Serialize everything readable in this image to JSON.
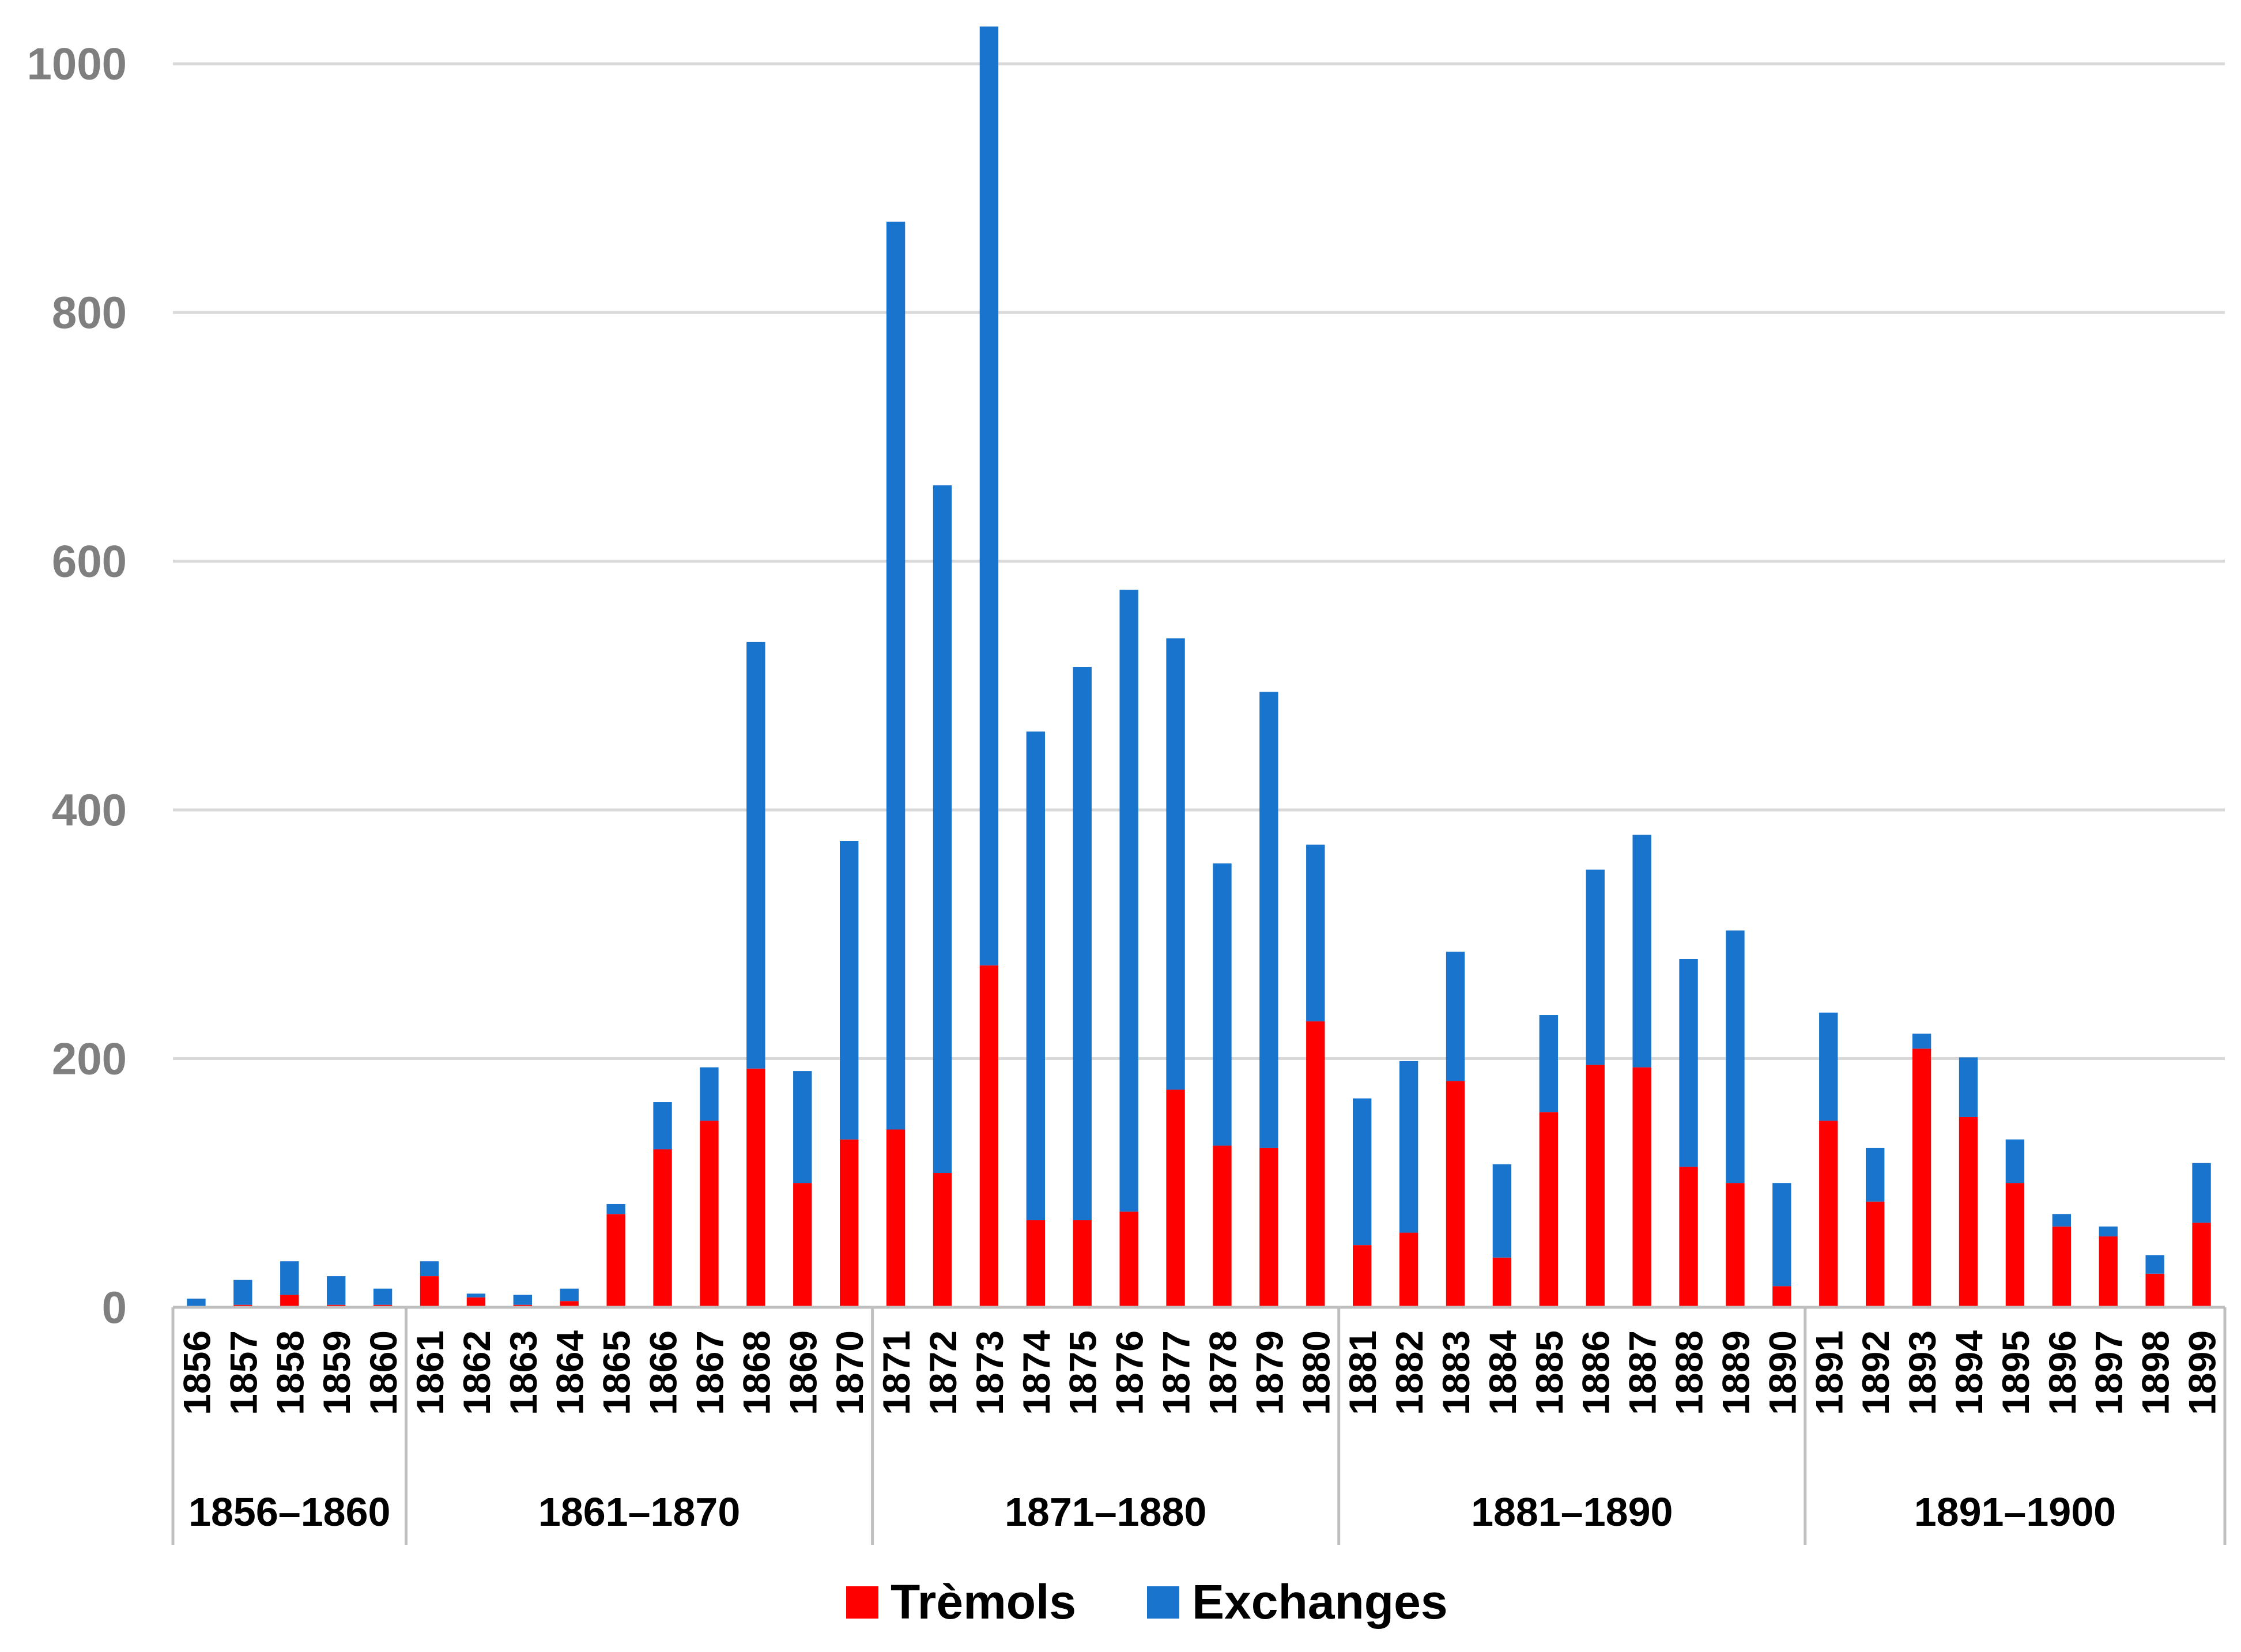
{
  "chart_data": {
    "type": "bar",
    "stacked": true,
    "title": "",
    "xlabel": "",
    "ylabel": "",
    "ylim": [
      0,
      1030
    ],
    "yticks": [
      0,
      200,
      400,
      600,
      800,
      1000
    ],
    "gridlines": true,
    "legend_position": "bottom",
    "categories": [
      "1856",
      "1857",
      "1858",
      "1859",
      "1860",
      "1861",
      "1862",
      "1863",
      "1864",
      "1865",
      "1866",
      "1867",
      "1868",
      "1869",
      "1870",
      "1871",
      "1872",
      "1873",
      "1874",
      "1875",
      "1876",
      "1877",
      "1878",
      "1879",
      "1880",
      "1881",
      "1882",
      "1883",
      "1884",
      "1885",
      "1886",
      "1887",
      "1888",
      "1889",
      "1890",
      "1891",
      "1892",
      "1893",
      "1894",
      "1895",
      "1896",
      "1897",
      "1898",
      "1899"
    ],
    "groups": [
      {
        "label": "1856–1860",
        "count": 5
      },
      {
        "label": "1861–1870",
        "count": 10
      },
      {
        "label": "1871–1880",
        "count": 10
      },
      {
        "label": "1881–1890",
        "count": 10
      },
      {
        "label": "1891–1900",
        "count": 9
      }
    ],
    "series": [
      {
        "name": "Trèmols",
        "color": "#ff0000",
        "values": [
          0,
          2,
          10,
          2,
          2,
          25,
          8,
          2,
          5,
          75,
          127,
          150,
          192,
          100,
          135,
          143,
          108,
          275,
          70,
          70,
          77,
          175,
          130,
          128,
          230,
          50,
          60,
          182,
          40,
          157,
          195,
          193,
          113,
          100,
          17,
          150,
          85,
          208,
          153,
          100,
          65,
          57,
          27,
          68
        ]
      },
      {
        "name": "Exchanges",
        "color": "#1874cd",
        "values": [
          7,
          20,
          27,
          23,
          13,
          12,
          3,
          8,
          10,
          8,
          38,
          43,
          343,
          90,
          240,
          730,
          553,
          755,
          393,
          445,
          500,
          363,
          227,
          367,
          142,
          118,
          138,
          104,
          75,
          78,
          157,
          187,
          167,
          203,
          83,
          87,
          43,
          12,
          48,
          35,
          10,
          8,
          15,
          48
        ]
      }
    ]
  }
}
